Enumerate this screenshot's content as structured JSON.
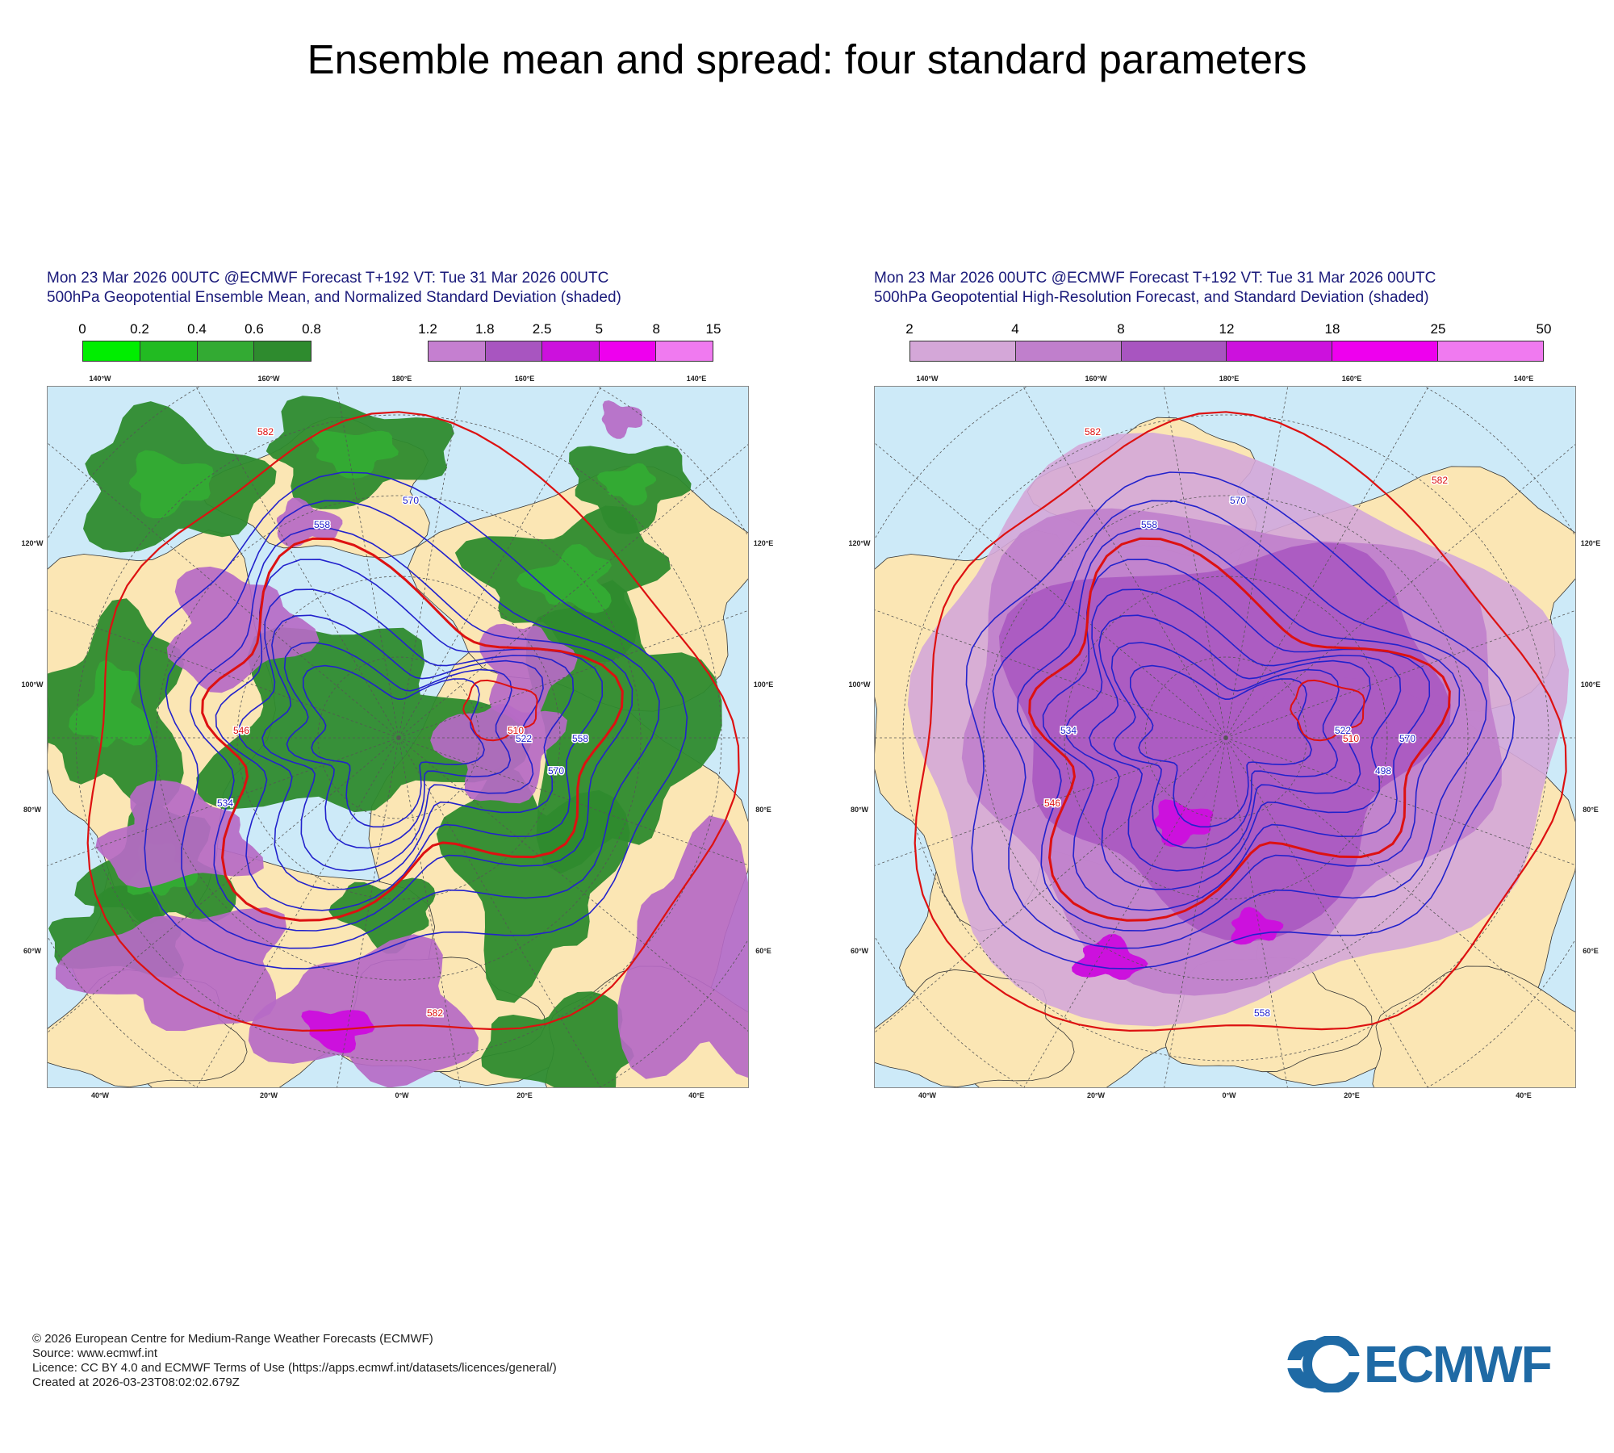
{
  "main_title": "Ensemble mean and spread: four standard parameters",
  "panels": [
    {
      "title_line1": "Mon 23 Mar 2026 00UTC @ECMWF Forecast T+192 VT: Tue 31 Mar 2026 00UTC",
      "title_line2": "500hPa Geopotential Ensemble Mean, and Normalized Standard Deviation (shaded)",
      "colorbars": [
        {
          "ticks": [
            "0",
            "0.2",
            "0.4",
            "0.6",
            "0.8"
          ],
          "colors": [
            "#00ee00",
            "#22bb22",
            "#33aa33",
            "#2e8b2e"
          ]
        },
        {
          "ticks": [
            "1.2",
            "1.8",
            "2.5",
            "5",
            "8",
            "15"
          ],
          "colors": [
            "#c57fd0",
            "#a855c0",
            "#cc11dd",
            "#ee00ee",
            "#f07af0"
          ]
        }
      ],
      "shading": "green",
      "lon_labels_top": [
        "140°W",
        "160°W",
        "180°E",
        "160°E",
        "140°E"
      ],
      "lon_labels_bottom": [
        "40°W",
        "20°W",
        "0°W",
        "20°E",
        "40°E"
      ],
      "lon_labels_left": [
        "120°W",
        "100°W",
        "80°W",
        "60°W"
      ],
      "lon_labels_right": [
        "120°E",
        "100°E",
        "80°E",
        "60°E"
      ],
      "contour_labels": [
        "582",
        "570",
        "558",
        "546",
        "534",
        "522",
        "510",
        "570",
        "558",
        "582"
      ]
    },
    {
      "title_line1": "Mon 23 Mar 2026 00UTC @ECMWF Forecast T+192 VT: Tue 31 Mar 2026 00UTC",
      "title_line2": "500hPa Geopotential High-Resolution Forecast, and Standard Deviation (shaded)",
      "colorbars": [
        {
          "ticks": [
            "2",
            "4",
            "8",
            "12",
            "18",
            "25",
            "50"
          ],
          "colors": [
            "#d4a7d8",
            "#c07fcc",
            "#a855c0",
            "#cc11dd",
            "#ee00ee",
            "#f07af0"
          ]
        }
      ],
      "shading": "purple",
      "lon_labels_top": [
        "140°W",
        "160°W",
        "180°E",
        "160°E",
        "140°E"
      ],
      "lon_labels_bottom": [
        "40°W",
        "20°W",
        "0°W",
        "20°E",
        "40°E"
      ],
      "lon_labels_left": [
        "120°W",
        "100°W",
        "80°W",
        "60°W"
      ],
      "lon_labels_right": [
        "120°E",
        "100°E",
        "80°E",
        "60°E"
      ],
      "contour_labels": [
        "582",
        "570",
        "558",
        "534",
        "546",
        "510",
        "522",
        "498",
        "570",
        "558",
        "582"
      ]
    }
  ],
  "footer": {
    "line1": "© 2026 European Centre for Medium-Range Weather Forecasts (ECMWF)",
    "line2": "Source: www.ecmwf.int",
    "line3": "Licence: CC BY 4.0 and ECMWF Terms of Use (https://apps.ecmwf.int/datasets/licences/general/)",
    "line4": "Created at 2026-03-23T08:02:02.679Z"
  },
  "logo_text": "ECMWF",
  "colors": {
    "ocean": "#cdeaf8",
    "land": "#fbe6b4",
    "mean_contour": "#2222cc",
    "ref_contour": "#dd1111"
  }
}
